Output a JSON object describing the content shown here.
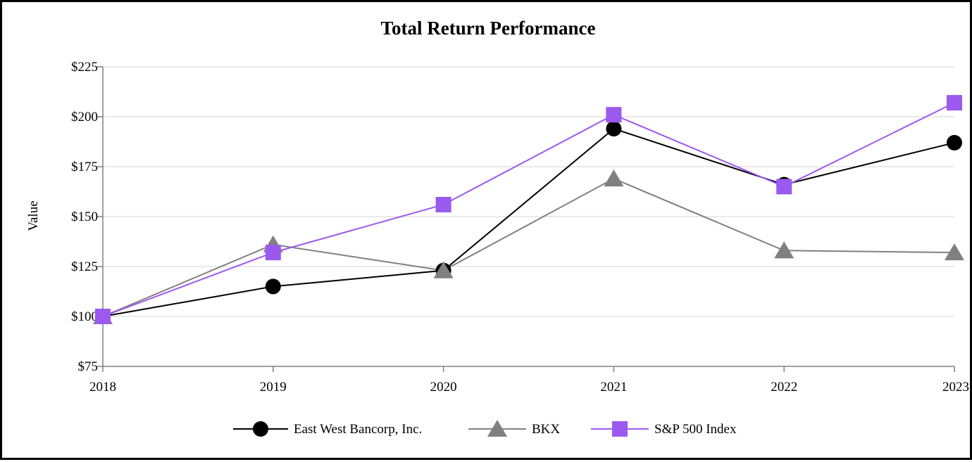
{
  "chart_data": {
    "type": "line",
    "title": "Total Return Performance",
    "xlabel": "",
    "ylabel": "Value",
    "categories": [
      "2018",
      "2019",
      "2020",
      "2021",
      "2022",
      "2023"
    ],
    "ylim": [
      75,
      225
    ],
    "yticks": [
      75,
      100,
      125,
      150,
      175,
      200,
      225
    ],
    "ytick_labels": [
      "$75",
      "$100",
      "$125",
      "$150",
      "$175",
      "$200",
      "$225"
    ],
    "grid": "horizontal",
    "legend_position": "bottom-center",
    "series": [
      {
        "name": "East West Bancorp, Inc.",
        "values": [
          100,
          115,
          123,
          194,
          166,
          187
        ],
        "color": "#000000",
        "marker": "circle"
      },
      {
        "name": "BKX",
        "values": [
          100,
          136,
          123,
          169,
          133,
          132
        ],
        "color": "#808080",
        "marker": "triangle"
      },
      {
        "name": "S&P 500 Index",
        "values": [
          100,
          132,
          156,
          201,
          165,
          207
        ],
        "color": "#9b59f0",
        "marker": "square"
      }
    ]
  }
}
